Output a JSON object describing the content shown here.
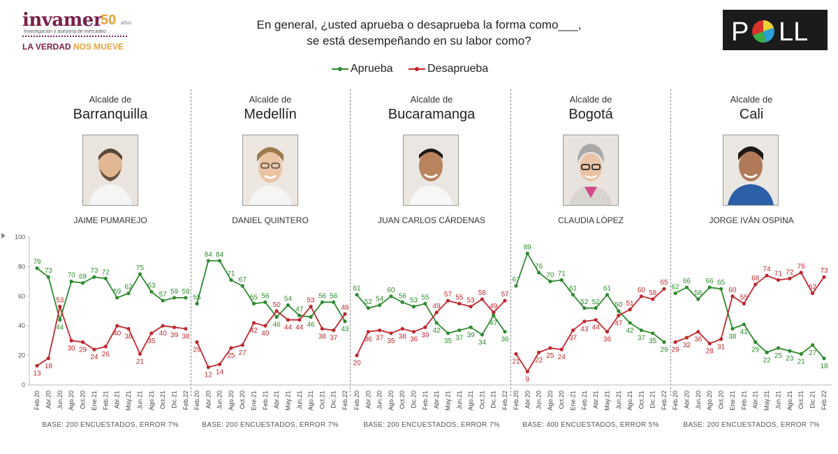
{
  "logo": {
    "name": "invamer",
    "years": "50",
    "years_suffix": "años",
    "tagline": "Investigación y asesoría de mercadeo",
    "slogan_part1": "LA VERDAD ",
    "slogan_part2": "NOS MUEVE"
  },
  "question_line1": "En general, ¿usted aprueba o desaprueba la forma como___,",
  "question_line2": "se está desempeñando en su labor como?",
  "poll_logo": "POLL",
  "legend": {
    "approve": "Aprueba",
    "disapprove": "Desaprueba"
  },
  "colors": {
    "approve": "#2e8b2e",
    "disapprove": "#c0272d",
    "brand": "#7a1e4a",
    "accent": "#e8a13a"
  },
  "mayors": [
    {
      "pre": "Alcalde de",
      "city": "Barranquilla",
      "name": "JAIME PUMAREJO",
      "base": "BASE: 200 ENCUESTADOS, ERROR 7%"
    },
    {
      "pre": "Alcalde de",
      "city": "Medellín",
      "name": "DANIEL QUINTERO",
      "base": "BASE: 200 ENCUESTADOS, ERROR 7%"
    },
    {
      "pre": "Alcalde de",
      "city": "Bucaramanga",
      "name": "JUAN CARLOS CÁRDENAS",
      "base": "BASE: 200 ENCUESTADOS, ERROR 7%"
    },
    {
      "pre": "Alcalde de",
      "city": "Bogotá",
      "name": "CLAUDIA LÓPEZ",
      "base": "BASE: 400 ENCUESTADOS, ERROR 5%"
    },
    {
      "pre": "Alcalde de",
      "city": "Cali",
      "name": "JORGE IVÁN OSPINA",
      "base": "BASE: 200 ENCUESTADOS, ERROR 7%"
    }
  ],
  "chart_data": {
    "type": "line",
    "ylim": [
      0,
      100
    ],
    "yticks": [
      0,
      20,
      40,
      60,
      80,
      100
    ],
    "categories": [
      "Feb.20",
      "Abr.20",
      "Jun.20",
      "Ago.20",
      "Oct.20",
      "Dic.20",
      "Feb.21",
      "Abr.21",
      "May.21",
      "Jun.21",
      "Ago.21",
      "Oct.21",
      "Dic.21",
      "Feb.22"
    ],
    "panels": [
      {
        "city": "Barranquilla",
        "x": [
          "Feb.20",
          "Abr.20",
          "Jun.20",
          "Ago.20",
          "Oct.20",
          "Ene.21",
          "Feb.21",
          "Abr.21",
          "May.21",
          "Jun.21",
          "Ago.21",
          "Oct.21",
          "Dic.21",
          "Feb.22"
        ],
        "series": [
          {
            "name": "Aprueba",
            "values": [
              79,
              73,
              44,
              70,
              69,
              73,
              72,
              59,
              62,
              75,
              63,
              57,
              59,
              59
            ]
          },
          {
            "name": "Desaprueba",
            "values": [
              13,
              18,
              53,
              30,
              29,
              24,
              26,
              40,
              38,
              21,
              35,
              40,
              39,
              38
            ]
          }
        ]
      },
      {
        "city": "Medellín",
        "x": [
          "Feb.20",
          "Abr.20",
          "Jun.20",
          "Ago.20",
          "Oct.20",
          "Ene.21",
          "Feb.21",
          "Abr.21",
          "May.21",
          "Jun.21",
          "Ago.21",
          "Oct.21",
          "Dic.21",
          "Feb.22"
        ],
        "series": [
          {
            "name": "Aprueba",
            "values": [
              55,
              84,
              84,
              71,
              67,
              55,
              56,
              46,
              54,
              47,
              46,
              56,
              56,
              43
            ]
          },
          {
            "name": "Desaprueba",
            "values": [
              29,
              12,
              14,
              25,
              27,
              42,
              40,
              50,
              44,
              44,
              53,
              38,
              37,
              48
            ]
          }
        ]
      },
      {
        "city": "Bucaramanga",
        "x": [
          "Feb.20",
          "Abr.20",
          "Jun.20",
          "Ago.20",
          "Oct.20",
          "Dic.20",
          "Feb.21",
          "Abr.21",
          "May.21",
          "Jun.21",
          "Ago.21",
          "Oct.21",
          "Dic.21",
          "Feb.22"
        ],
        "series": [
          {
            "name": "Aprueba",
            "values": [
              61,
              52,
              54,
              60,
              56,
              53,
              55,
              42,
              35,
              37,
              39,
              34,
              47,
              36
            ]
          },
          {
            "name": "Desaprueba",
            "values": [
              20,
              36,
              37,
              35,
              38,
              36,
              39,
              49,
              57,
              55,
              53,
              58,
              49,
              57
            ]
          }
        ]
      },
      {
        "city": "Bogotá",
        "x": [
          "Feb.20",
          "Abr.20",
          "Jun.20",
          "Ago.20",
          "Oct.20",
          "Ene.21",
          "Feb.21",
          "Abr.21",
          "May.21",
          "Jun.21",
          "Ago.21",
          "Oct.21",
          "Dic.21",
          "Feb.22"
        ],
        "series": [
          {
            "name": "Aprueba",
            "values": [
              67,
              89,
              76,
              70,
              71,
              61,
              52,
              52,
              61,
              50,
              42,
              37,
              35,
              29
            ]
          },
          {
            "name": "Desaprueba",
            "values": [
              21,
              9,
              22,
              25,
              24,
              37,
              43,
              44,
              36,
              47,
              51,
              60,
              58,
              65
            ]
          }
        ]
      },
      {
        "city": "Cali",
        "x": [
          "Feb.20",
          "Abr.20",
          "Jun.20",
          "Ago.20",
          "Oct.20",
          "Ene.21",
          "Feb.21",
          "Abr.21",
          "May.21",
          "Jun.21",
          "Ago.21",
          "Oct.21",
          "Dic.21",
          "Feb.22"
        ],
        "series": [
          {
            "name": "Aprueba",
            "values": [
              62,
              66,
              58,
              66,
              65,
              38,
              41,
              29,
              22,
              25,
              23,
              21,
              27,
              18
            ]
          },
          {
            "name": "Desaprueba",
            "values": [
              29,
              32,
              36,
              28,
              31,
              60,
              55,
              68,
              74,
              71,
              72,
              76,
              62,
              73
            ]
          }
        ]
      }
    ]
  }
}
